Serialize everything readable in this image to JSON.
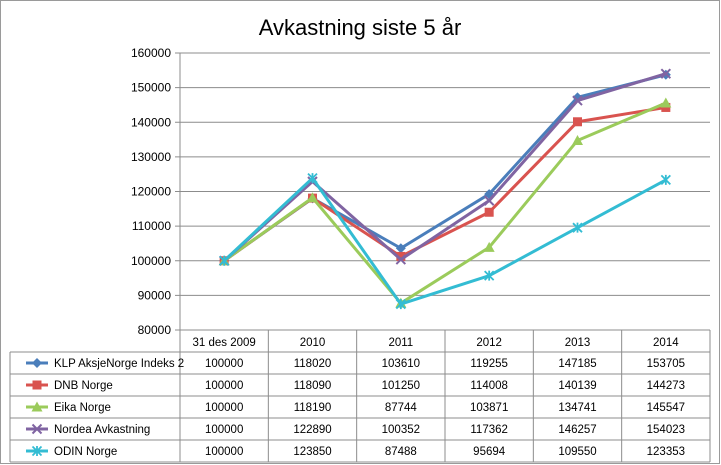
{
  "chart_data": {
    "type": "line",
    "title": "Avkastning siste 5 år",
    "categories": [
      "31 des 2009",
      "2010",
      "2011",
      "2012",
      "2013",
      "2014"
    ],
    "ylim": [
      80000,
      160000
    ],
    "yticks": [
      80000,
      90000,
      100000,
      110000,
      120000,
      130000,
      140000,
      150000,
      160000
    ],
    "grid": true,
    "legend": "data-table",
    "series": [
      {
        "name": "KLP AksjeNorge Indeks 2",
        "color": "#4a7ebb",
        "marker": "diamond",
        "values": [
          100000,
          118020,
          103610,
          119255,
          147185,
          153705
        ]
      },
      {
        "name": "DNB Norge",
        "color": "#d9534f",
        "marker": "square",
        "values": [
          100000,
          118090,
          101250,
          114008,
          140139,
          144273
        ]
      },
      {
        "name": "Eika Norge",
        "color": "#9bcb5b",
        "marker": "triangle",
        "values": [
          100000,
          118190,
          87744,
          103871,
          134741,
          145547
        ]
      },
      {
        "name": "Nordea Avkastning",
        "color": "#8064a2",
        "marker": "x",
        "values": [
          100000,
          122890,
          100352,
          117362,
          146257,
          154023
        ]
      },
      {
        "name": "ODIN Norge",
        "color": "#33bcd3",
        "marker": "star",
        "values": [
          100000,
          123850,
          87488,
          95694,
          109550,
          123353
        ]
      }
    ]
  }
}
